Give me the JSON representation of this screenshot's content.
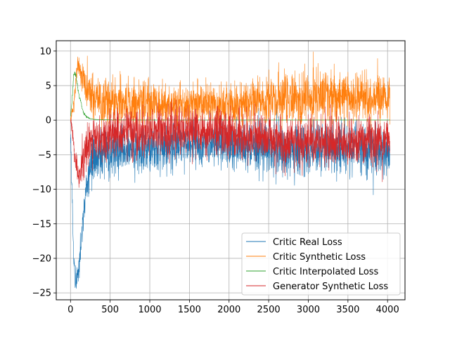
{
  "chart_data": {
    "type": "line",
    "title": "",
    "xlabel": "",
    "ylabel": "",
    "xlim": [
      -180,
      4220
    ],
    "ylim": [
      -26,
      11.5
    ],
    "xticks": [
      0,
      500,
      1000,
      1500,
      2000,
      2500,
      3000,
      3500,
      4000
    ],
    "yticks": [
      -25,
      -20,
      -15,
      -10,
      -5,
      0,
      5,
      10
    ],
    "xtick_labels": [
      "0",
      "500",
      "1000",
      "1500",
      "2000",
      "2500",
      "3000",
      "3500",
      "4000"
    ],
    "ytick_labels": [
      "−25",
      "−20",
      "−15",
      "−10",
      "−5",
      "0",
      "5",
      "10"
    ],
    "grid": true,
    "legend_position": "lower right",
    "series": [
      {
        "name": "Critic Real Loss",
        "color": "#1f77b4",
        "x": [
          0,
          40,
          60,
          100,
          150,
          200,
          250,
          300,
          400,
          500,
          600,
          700,
          800,
          1000,
          1200,
          1500,
          1800,
          2000,
          2300,
          2500,
          2700,
          3000,
          3300,
          3500,
          3800,
          4030
        ],
        "values": [
          -1,
          -20,
          -24,
          -22,
          -16,
          -10,
          -7,
          -5.5,
          -5,
          -4.8,
          -4.6,
          -4.5,
          -4.3,
          -4.1,
          -3.7,
          -3.4,
          -3.3,
          -3.5,
          -3.8,
          -4.2,
          -4.4,
          -4.3,
          -4.2,
          -4.1,
          -4.2,
          -4.2
        ],
        "noise": [
          1,
          1.2,
          1.2,
          1.5,
          2,
          2.5,
          2.8,
          3,
          3,
          3,
          3,
          3,
          3,
          2.9,
          2.8,
          2.7,
          2.8,
          2.9,
          3.1,
          3.3,
          3.4,
          3.3,
          3.2,
          3.2,
          3.2,
          3.2
        ]
      },
      {
        "name": "Critic Synthetic Loss",
        "color": "#ff7f0e",
        "x": [
          0,
          40,
          70,
          90,
          150,
          200,
          300,
          400,
          500,
          700,
          1000,
          1300,
          1500,
          1800,
          2000,
          2300,
          2500,
          2700,
          3000,
          3300,
          3500,
          3800,
          4030
        ],
        "values": [
          0,
          2,
          6,
          8.5,
          6,
          4.5,
          3.5,
          3,
          2.8,
          2.6,
          2.4,
          2.2,
          2.1,
          2.1,
          2.2,
          2.6,
          3,
          3.4,
          3.3,
          3.2,
          3.2,
          3.1,
          3.1
        ],
        "noise": [
          0.5,
          1,
          1,
          1,
          2,
          2.3,
          2.8,
          3,
          3,
          2.9,
          2.8,
          2.6,
          2.5,
          2.5,
          2.6,
          2.8,
          3,
          3.2,
          3.2,
          3.1,
          3.1,
          3,
          3
        ]
      },
      {
        "name": "Critic Interpolated Loss",
        "color": "#2ca02c",
        "x": [
          0,
          20,
          40,
          60,
          80,
          100,
          130,
          160,
          200,
          250,
          300,
          400,
          600,
          1000,
          2000,
          3000,
          4030
        ],
        "values": [
          0.5,
          3,
          6.5,
          6.8,
          5.5,
          4,
          2.5,
          1.2,
          0.5,
          0.2,
          0.1,
          0.05,
          0.03,
          0.02,
          0.02,
          0.02,
          0.02
        ],
        "noise": [
          0.2,
          0.3,
          0.4,
          0.4,
          0.4,
          0.35,
          0.3,
          0.2,
          0.1,
          0.05,
          0.03,
          0.02,
          0.02,
          0.01,
          0.01,
          0.01,
          0.01
        ]
      },
      {
        "name": "Generator Synthetic Loss",
        "color": "#d62728",
        "x": [
          0,
          30,
          60,
          100,
          150,
          200,
          300,
          400,
          600,
          800,
          1000,
          1300,
          1500,
          1800,
          2000,
          2300,
          2500,
          2700,
          3000,
          3300,
          3500,
          3800,
          4030
        ],
        "values": [
          0,
          -2,
          -6,
          -8,
          -6,
          -4,
          -2.5,
          -2.2,
          -2,
          -2,
          -1.9,
          -1.6,
          -1.5,
          -1.6,
          -1.8,
          -2.3,
          -2.8,
          -3.3,
          -3.3,
          -3.2,
          -3.2,
          -3.1,
          -3.1
        ],
        "noise": [
          0.8,
          1.2,
          1.5,
          2,
          2.8,
          3,
          3,
          3,
          3,
          3,
          3,
          3,
          2.9,
          2.9,
          2.9,
          3,
          3.1,
          3.2,
          3.2,
          3.1,
          3.1,
          3.1,
          3.1
        ]
      }
    ]
  }
}
